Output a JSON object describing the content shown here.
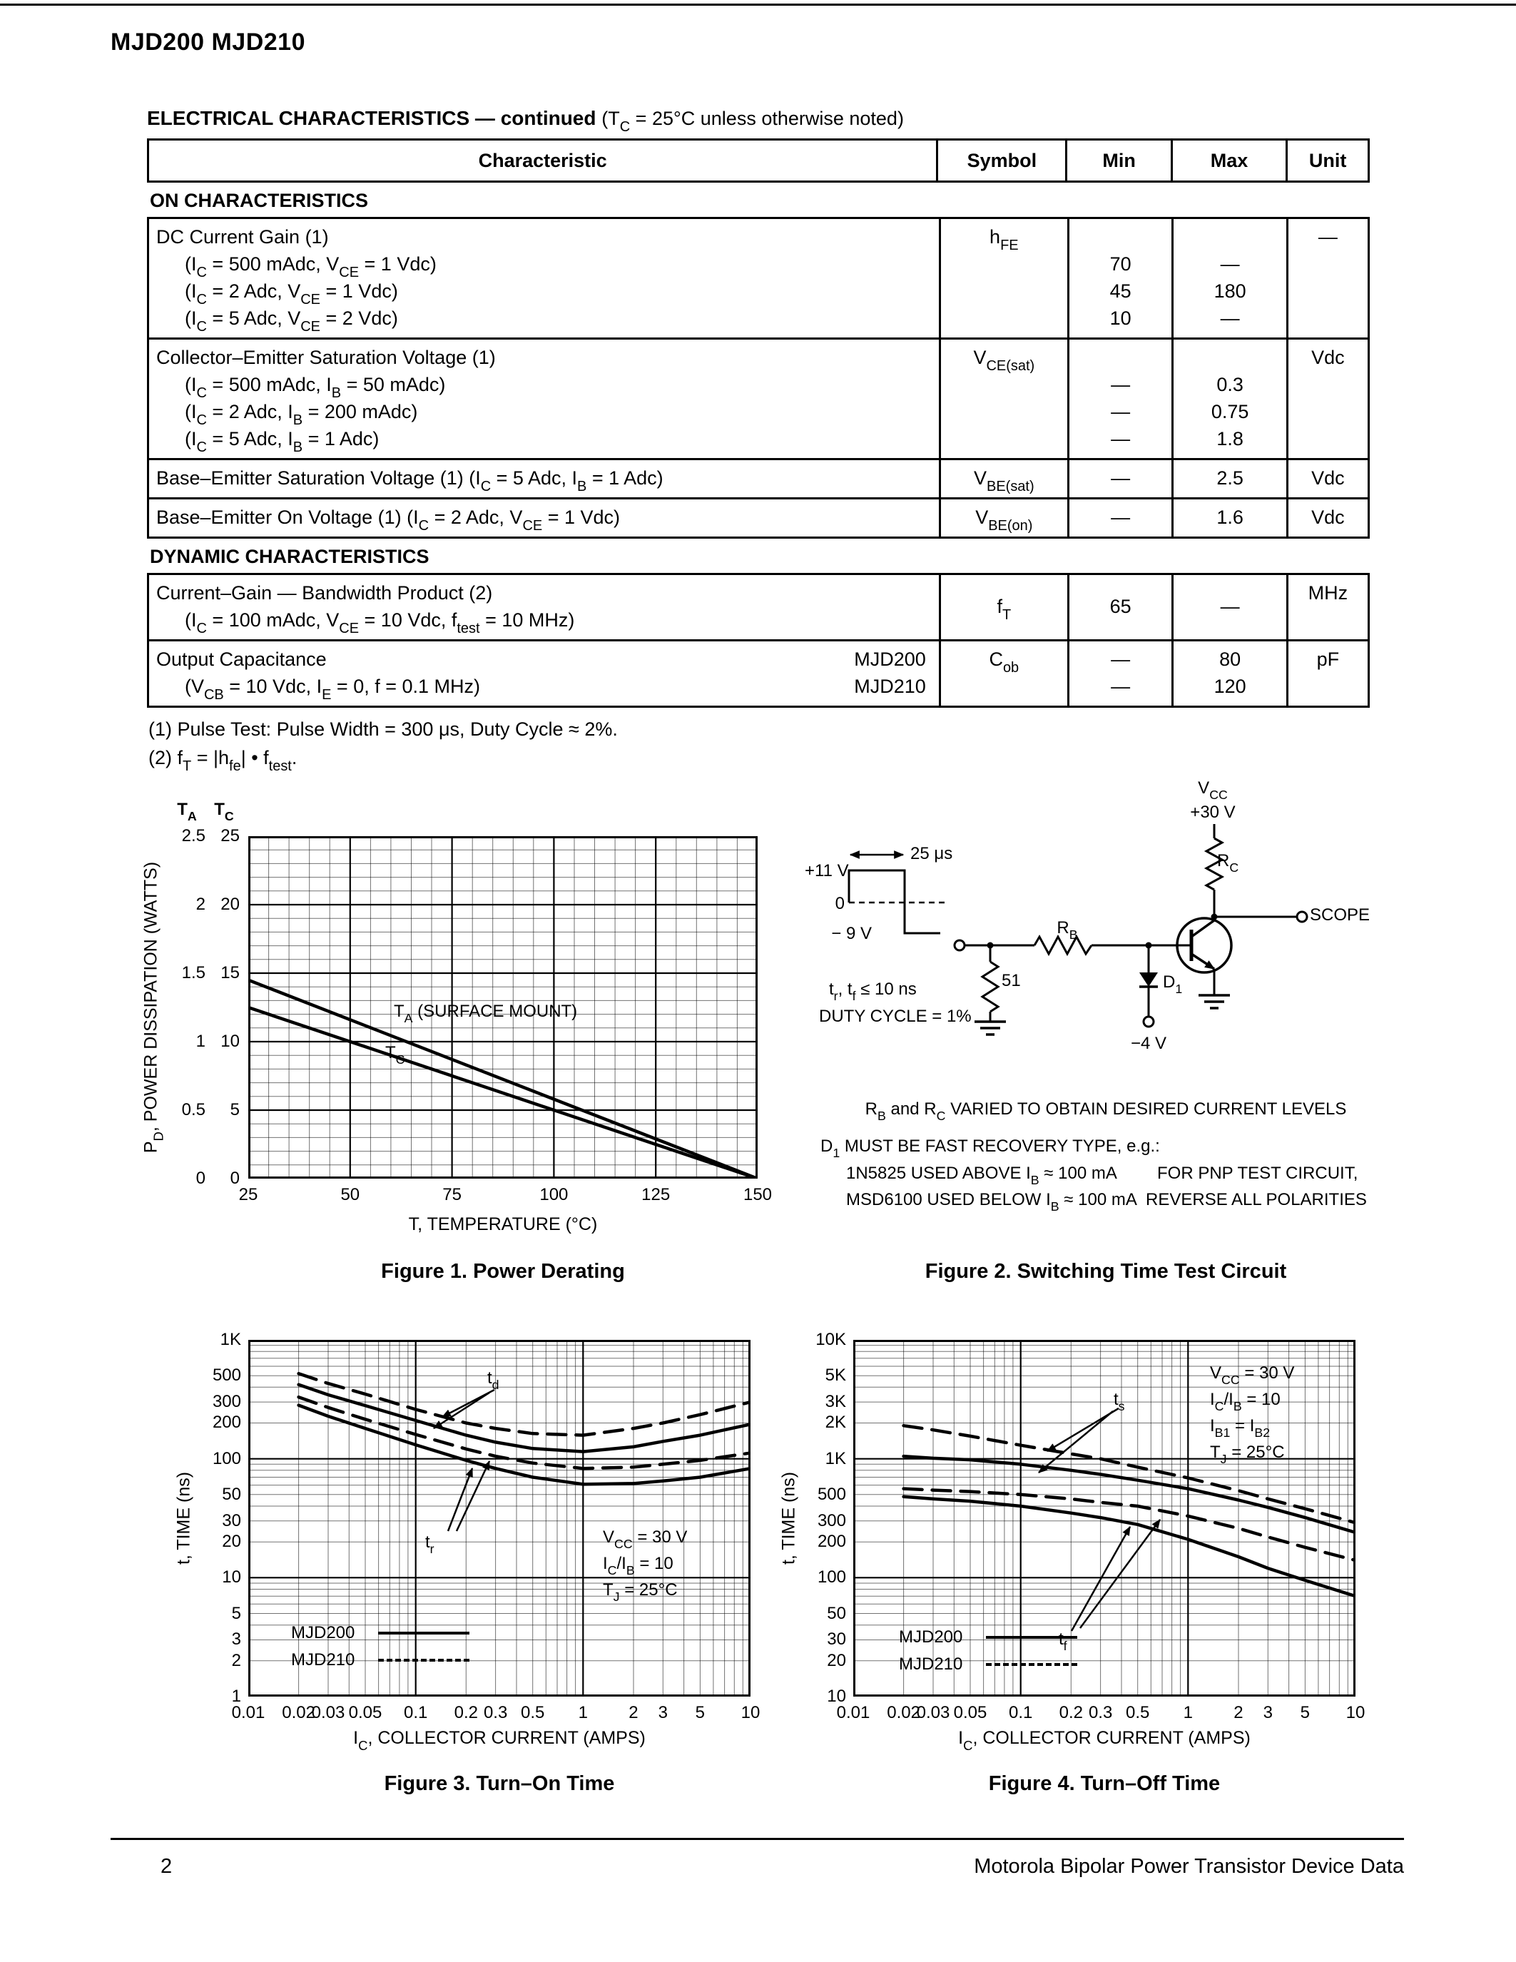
{
  "page": {
    "title": "MJD200 MJD210",
    "footer_page": "2",
    "footer_text": "Motorola Bipolar Power Transistor Device Data"
  },
  "table": {
    "heading_bold": "ELECTRICAL CHARACTERISTICS — continued",
    "heading_note": "(T_{C} = 25°C unless otherwise noted)",
    "col_characteristic": "Characteristic",
    "col_symbol": "Symbol",
    "col_min": "Min",
    "col_max": "Max",
    "col_unit": "Unit",
    "section_on": "ON CHARACTERISTICS",
    "section_dynamic": "DYNAMIC CHARACTERISTICS",
    "rows": [
      {
        "lines": [
          "DC Current Gain (1)",
          "(I_{C} = 500 mAdc, V_{CE} = 1 Vdc)",
          "(I_{C} = 2 Adc, V_{CE} = 1 Vdc)",
          "(I_{C} = 5 Adc, V_{CE} = 2 Vdc)"
        ],
        "symbol": "h_{FE}",
        "min": [
          "70",
          "45",
          "10"
        ],
        "max": [
          "—",
          "180",
          "—"
        ],
        "unit": "—"
      },
      {
        "lines": [
          "Collector–Emitter Saturation Voltage (1)",
          "(I_{C} = 500 mAdc, I_{B} = 50 mAdc)",
          "(I_{C} = 2 Adc, I_{B} = 200 mAdc)",
          "(I_{C} = 5 Adc, I_{B} = 1 Adc)"
        ],
        "symbol": "V_{CE(sat)}",
        "min": [
          "—",
          "—",
          "—"
        ],
        "max": [
          "0.3",
          "0.75",
          "1.8"
        ],
        "unit": "Vdc"
      },
      {
        "lines": [
          "Base–Emitter Saturation Voltage (1) (I_{C} = 5 Adc, I_{B} = 1 Adc)"
        ],
        "symbol": "V_{BE(sat)}",
        "min": [
          "—"
        ],
        "max": [
          "2.5"
        ],
        "unit": "Vdc"
      },
      {
        "lines": [
          "Base–Emitter On Voltage (1) (I_{C} = 2 Adc, V_{CE} = 1 Vdc)"
        ],
        "symbol": "V_{BE(on)}",
        "min": [
          "—"
        ],
        "max": [
          "1.6"
        ],
        "unit": "Vdc"
      },
      {
        "lines": [
          "Current–Gain — Bandwidth Product (2)",
          "(I_{C} = 100 mAdc, V_{CE} = 10 Vdc, f_{test} = 10 MHz)"
        ],
        "symbol": "f_{T}",
        "min": [
          "65"
        ],
        "max": [
          "—"
        ],
        "unit": "MHz"
      },
      {
        "lines": [
          "Output Capacitance",
          "(V_{CB} = 10 Vdc, I_{E} = 0, f = 0.1 MHz)"
        ],
        "devices": [
          "MJD200",
          "MJD210"
        ],
        "symbol": "C_{ob}",
        "min": [
          "—",
          "—"
        ],
        "max": [
          "80",
          "120"
        ],
        "unit": "pF"
      }
    ]
  },
  "footnotes": [
    "(1)  Pulse Test: Pulse Width = 300 μs, Duty Cycle ≈ 2%.",
    "(2)  f_{T} = |h_{fe}| • f_{test}."
  ],
  "circuit": {
    "caption": "Figure 2. Switching Time Test Circuit",
    "vcc_label": "V_{CC}",
    "vcc_value": "+30 V",
    "rc_label": "R_{C}",
    "scope_label": "SCOPE",
    "rb_label": "R_{B}",
    "r51_label": "51",
    "d1_label": "D_{1}",
    "neg4v_label": "−4 V",
    "plus11v": "+11 V",
    "zero": "0",
    "neg9v": "− 9 V",
    "pulse_width": "25 μs",
    "trtf": "t_{r}, t_{f} ≤ 10 ns",
    "duty": "DUTY CYCLE = 1%",
    "note_rbrc": "R_{B} and R_{C} VARIED TO OBTAIN DESIRED CURRENT LEVELS",
    "note_d1_1": "D_{1} MUST BE FAST RECOVERY TYPE, e.g.:",
    "note_d1_2": "1N5825 USED ABOVE I_{B} ≈ 100 mA",
    "note_d1_3": "MSD6100 USED BELOW I_{B} ≈ 100 mA",
    "note_pnp_1": "FOR PNP TEST CIRCUIT,",
    "note_pnp_2": "REVERSE ALL POLARITIES"
  },
  "chart_data": [
    {
      "id": "fig1",
      "type": "line",
      "title": "Figure 1. Power Derating",
      "xlabel": "T, TEMPERATURE (°C)",
      "ylabel": "P_{D}, POWER DISSIPATION (WATTS)",
      "xlim": [
        25,
        150
      ],
      "grid": true,
      "x_ticks": [
        {
          "v": 25,
          "label": "25"
        },
        {
          "v": 50,
          "label": "50"
        },
        {
          "v": 75,
          "label": "75"
        },
        {
          "v": 100,
          "label": "100"
        },
        {
          "v": 125,
          "label": "125"
        },
        {
          "v": 150,
          "label": "150"
        }
      ],
      "y_axes": [
        {
          "id": "TA",
          "label": "T_{A}",
          "max": 2.5,
          "ticks": [
            "2.5",
            "2",
            "1.5",
            "1",
            "0.5",
            "0"
          ]
        },
        {
          "id": "TC",
          "label": "T_{C}",
          "max": 25,
          "ticks": [
            "25",
            "20",
            "15",
            "10",
            "5",
            "0"
          ]
        }
      ],
      "series": [
        {
          "name": "T_{A} (SURFACE MOUNT)",
          "axis": "TA",
          "style": "solid",
          "points": [
            [
              25,
              1.45
            ],
            [
              150,
              0
            ]
          ]
        },
        {
          "name": "T_{C}",
          "axis": "TC",
          "style": "solid",
          "points": [
            [
              25,
              12.5
            ],
            [
              150,
              0
            ]
          ]
        }
      ]
    },
    {
      "id": "fig3",
      "type": "line",
      "title": "Figure 3. Turn–On Time",
      "xlabel": "I_{C}, COLLECTOR CURRENT (AMPS)",
      "ylabel": "t, TIME (ns)",
      "xscale": "log",
      "yscale": "log",
      "xlim": [
        0.01,
        10
      ],
      "ylim": [
        1,
        1000
      ],
      "x_ticks": [
        {
          "v": 0.01,
          "label": "0.01"
        },
        {
          "v": 0.02,
          "label": "0.02"
        },
        {
          "v": 0.03,
          "label": "0.03"
        },
        {
          "v": 0.05,
          "label": "0.05"
        },
        {
          "v": 0.1,
          "label": "0.1"
        },
        {
          "v": 0.2,
          "label": "0.2"
        },
        {
          "v": 0.3,
          "label": "0.3"
        },
        {
          "v": 0.5,
          "label": "0.5"
        },
        {
          "v": 1,
          "label": "1"
        },
        {
          "v": 2,
          "label": "2"
        },
        {
          "v": 3,
          "label": "3"
        },
        {
          "v": 5,
          "label": "5"
        },
        {
          "v": 10,
          "label": "10"
        }
      ],
      "y_ticks": [
        {
          "v": 1000,
          "label": "1K"
        },
        {
          "v": 500,
          "label": "500"
        },
        {
          "v": 300,
          "label": "300"
        },
        {
          "v": 200,
          "label": "200"
        },
        {
          "v": 100,
          "label": "100"
        },
        {
          "v": 50,
          "label": "50"
        },
        {
          "v": 30,
          "label": "30"
        },
        {
          "v": 20,
          "label": "20"
        },
        {
          "v": 10,
          "label": "10"
        },
        {
          "v": 5,
          "label": "5"
        },
        {
          "v": 3,
          "label": "3"
        },
        {
          "v": 2,
          "label": "2"
        },
        {
          "v": 1,
          "label": "1"
        }
      ],
      "conditions": [
        "V_{CC} = 30 V",
        "I_{C}/I_{B} = 10",
        "T_{J} = 25°C"
      ],
      "annotations": [
        "t_{d}",
        "t_{r}"
      ],
      "legend": [
        {
          "label": "MJD200",
          "style": "solid"
        },
        {
          "label": "MJD210",
          "style": "dashed"
        }
      ],
      "series": [
        {
          "name": "t_{d} MJD210",
          "style": "dashed",
          "points": [
            [
              0.02,
              520
            ],
            [
              0.03,
              430
            ],
            [
              0.05,
              350
            ],
            [
              0.1,
              260
            ],
            [
              0.2,
              200
            ],
            [
              0.3,
              180
            ],
            [
              0.5,
              163
            ],
            [
              1,
              158
            ],
            [
              2,
              180
            ],
            [
              3,
              200
            ],
            [
              5,
              235
            ],
            [
              10,
              300
            ]
          ]
        },
        {
          "name": "t_{d} MJD200",
          "style": "solid",
          "points": [
            [
              0.02,
              420
            ],
            [
              0.03,
              345
            ],
            [
              0.05,
              280
            ],
            [
              0.1,
              210
            ],
            [
              0.2,
              158
            ],
            [
              0.3,
              138
            ],
            [
              0.5,
              122
            ],
            [
              1,
              115
            ],
            [
              2,
              126
            ],
            [
              3,
              140
            ],
            [
              5,
              158
            ],
            [
              10,
              195
            ]
          ]
        },
        {
          "name": "t_{r} MJD210",
          "style": "dashed",
          "points": [
            [
              0.02,
              330
            ],
            [
              0.03,
              270
            ],
            [
              0.05,
              215
            ],
            [
              0.1,
              160
            ],
            [
              0.2,
              121
            ],
            [
              0.3,
              105
            ],
            [
              0.5,
              92
            ],
            [
              1,
              83
            ],
            [
              2,
              85
            ],
            [
              3,
              90
            ],
            [
              5,
              97
            ],
            [
              10,
              112
            ]
          ]
        },
        {
          "name": "t_{r} MJD200",
          "style": "solid",
          "points": [
            [
              0.02,
              282
            ],
            [
              0.03,
              228
            ],
            [
              0.05,
              180
            ],
            [
              0.1,
              131
            ],
            [
              0.2,
              97
            ],
            [
              0.3,
              83
            ],
            [
              0.5,
              70
            ],
            [
              1,
              61
            ],
            [
              2,
              62
            ],
            [
              3,
              65
            ],
            [
              5,
              70
            ],
            [
              10,
              83
            ]
          ]
        }
      ]
    },
    {
      "id": "fig4",
      "type": "line",
      "title": "Figure 4. Turn–Off Time",
      "xlabel": "I_{C}, COLLECTOR CURRENT (AMPS)",
      "ylabel": "t, TIME (ns)",
      "xscale": "log",
      "yscale": "log",
      "xlim": [
        0.01,
        10
      ],
      "ylim": [
        10,
        10000
      ],
      "x_ticks": [
        {
          "v": 0.01,
          "label": "0.01"
        },
        {
          "v": 0.02,
          "label": "0.02"
        },
        {
          "v": 0.03,
          "label": "0.03"
        },
        {
          "v": 0.05,
          "label": "0.05"
        },
        {
          "v": 0.1,
          "label": "0.1"
        },
        {
          "v": 0.2,
          "label": "0.2"
        },
        {
          "v": 0.3,
          "label": "0.3"
        },
        {
          "v": 0.5,
          "label": "0.5"
        },
        {
          "v": 1,
          "label": "1"
        },
        {
          "v": 2,
          "label": "2"
        },
        {
          "v": 3,
          "label": "3"
        },
        {
          "v": 5,
          "label": "5"
        },
        {
          "v": 10,
          "label": "10"
        }
      ],
      "y_ticks": [
        {
          "v": 10000,
          "label": "10K"
        },
        {
          "v": 5000,
          "label": "5K"
        },
        {
          "v": 3000,
          "label": "3K"
        },
        {
          "v": 2000,
          "label": "2K"
        },
        {
          "v": 1000,
          "label": "1K"
        },
        {
          "v": 500,
          "label": "500"
        },
        {
          "v": 300,
          "label": "300"
        },
        {
          "v": 200,
          "label": "200"
        },
        {
          "v": 100,
          "label": "100"
        },
        {
          "v": 50,
          "label": "50"
        },
        {
          "v": 30,
          "label": "30"
        },
        {
          "v": 20,
          "label": "20"
        },
        {
          "v": 10,
          "label": "10"
        }
      ],
      "conditions": [
        "V_{CC} = 30 V",
        "I_{C}/I_{B} = 10",
        "I_{B1} = I_{B2}",
        "T_{J} = 25°C"
      ],
      "annotations": [
        "t_{s}",
        "t_{f}"
      ],
      "legend": [
        {
          "label": "MJD200",
          "style": "solid"
        },
        {
          "label": "MJD210",
          "style": "dashed"
        }
      ],
      "series": [
        {
          "name": "t_{s} MJD210",
          "style": "dashed",
          "points": [
            [
              0.02,
              1900
            ],
            [
              0.03,
              1750
            ],
            [
              0.05,
              1550
            ],
            [
              0.1,
              1300
            ],
            [
              0.2,
              1100
            ],
            [
              0.3,
              1000
            ],
            [
              0.5,
              850
            ],
            [
              1,
              690
            ],
            [
              2,
              540
            ],
            [
              3,
              460
            ],
            [
              5,
              380
            ],
            [
              10,
              290
            ]
          ]
        },
        {
          "name": "t_{s} MJD200",
          "style": "solid",
          "points": [
            [
              0.02,
              1050
            ],
            [
              0.03,
              1010
            ],
            [
              0.05,
              980
            ],
            [
              0.1,
              900
            ],
            [
              0.2,
              800
            ],
            [
              0.3,
              740
            ],
            [
              0.5,
              660
            ],
            [
              1,
              560
            ],
            [
              2,
              450
            ],
            [
              3,
              390
            ],
            [
              5,
              320
            ],
            [
              10,
              240
            ]
          ]
        },
        {
          "name": "t_{f} MJD210",
          "style": "dashed",
          "points": [
            [
              0.02,
              560
            ],
            [
              0.03,
              545
            ],
            [
              0.05,
              530
            ],
            [
              0.1,
              500
            ],
            [
              0.2,
              460
            ],
            [
              0.3,
              430
            ],
            [
              0.5,
              400
            ],
            [
              1,
              330
            ],
            [
              2,
              260
            ],
            [
              3,
              220
            ],
            [
              5,
              180
            ],
            [
              10,
              140
            ]
          ]
        },
        {
          "name": "t_{f} MJD200",
          "style": "solid",
          "points": [
            [
              0.02,
              480
            ],
            [
              0.03,
              460
            ],
            [
              0.05,
              440
            ],
            [
              0.1,
              400
            ],
            [
              0.2,
              350
            ],
            [
              0.3,
              320
            ],
            [
              0.5,
              280
            ],
            [
              1,
              210
            ],
            [
              2,
              150
            ],
            [
              3,
              120
            ],
            [
              5,
              95
            ],
            [
              10,
              70
            ]
          ]
        }
      ]
    }
  ]
}
